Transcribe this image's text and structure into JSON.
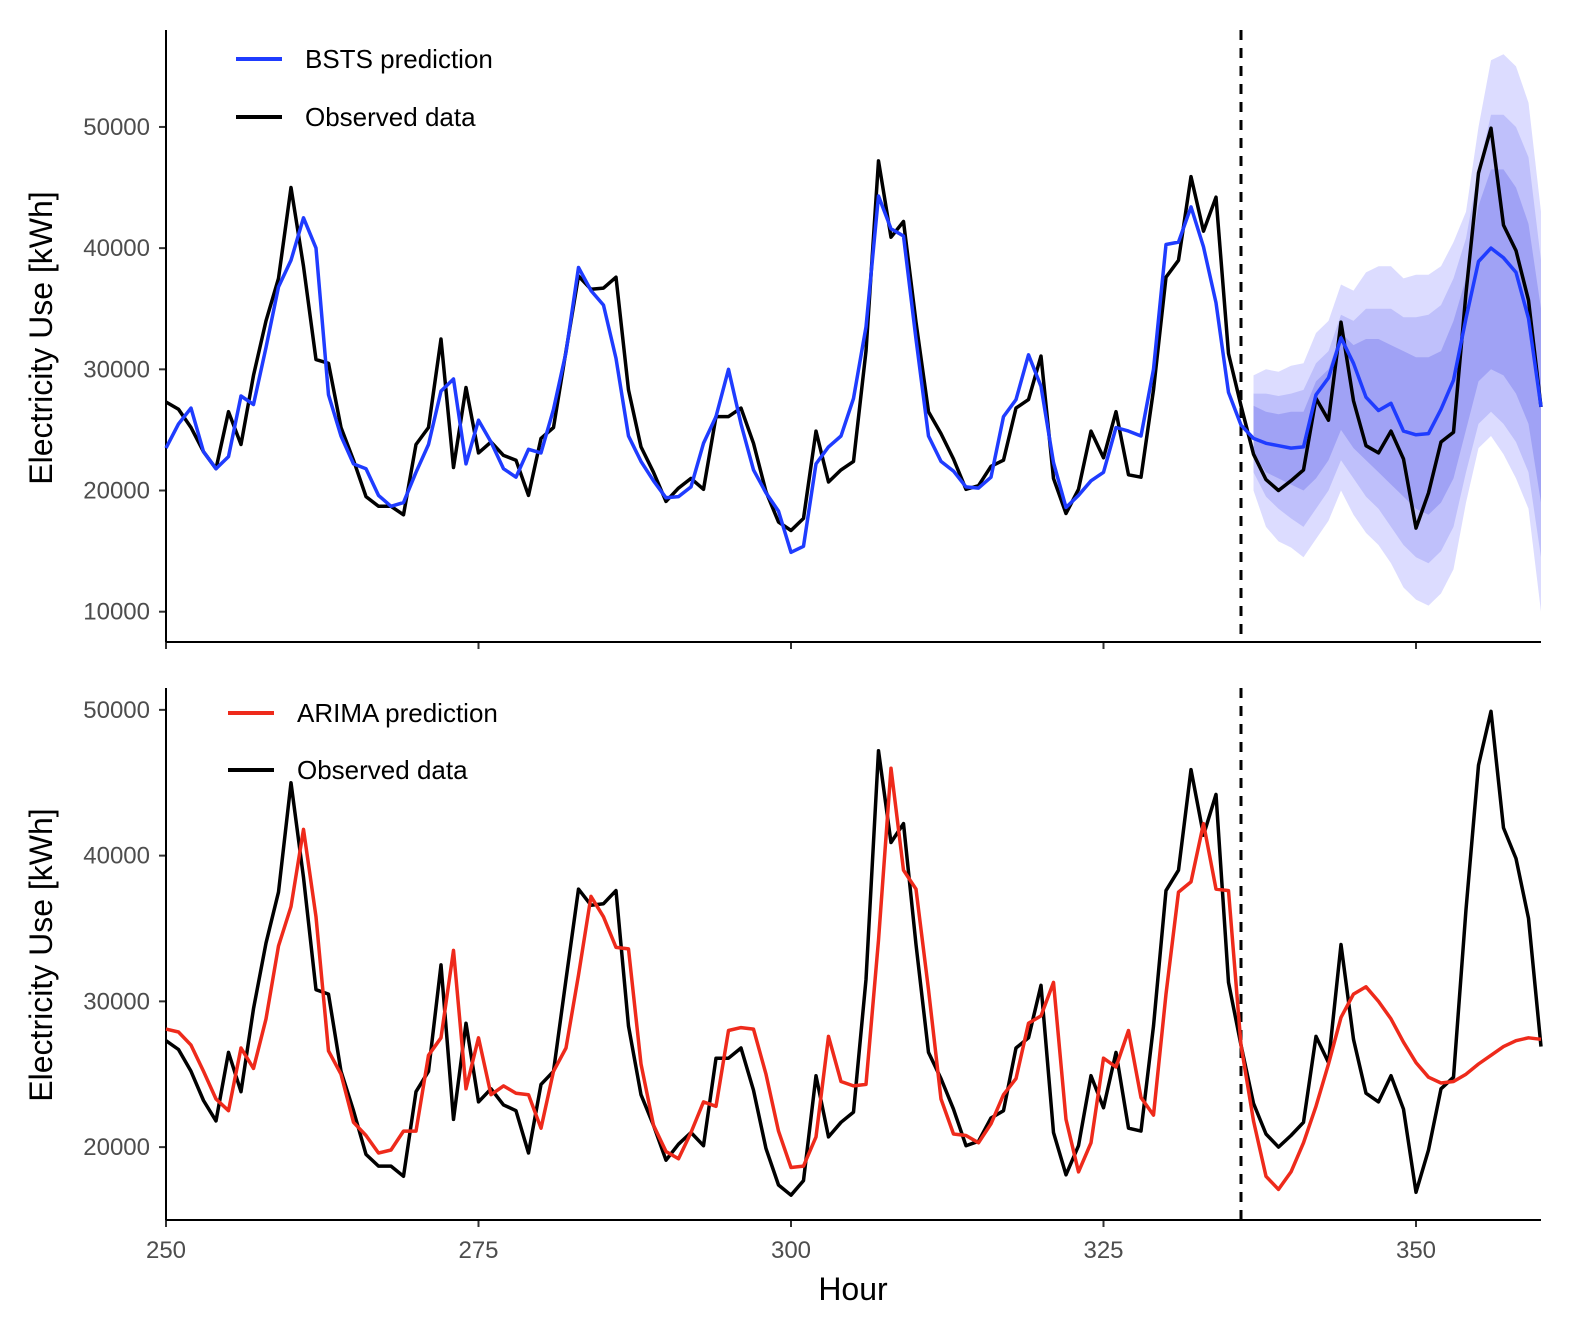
{
  "chart_data": [
    {
      "type": "line",
      "panel": "top",
      "xlabel": "",
      "ylabel": "Electricity Use [kWh]",
      "xlim": [
        250,
        360
      ],
      "ylim": [
        7500,
        58000
      ],
      "xticks": [
        250,
        275,
        300,
        325,
        350
      ],
      "yticks": [
        10000,
        20000,
        30000,
        40000,
        50000
      ],
      "ytick_labels": [
        "10000",
        "20000",
        "30000",
        "40000",
        "50000"
      ],
      "forecast_start": 336,
      "legend": [
        {
          "label": "BSTS prediction",
          "color": "#1f3cff"
        },
        {
          "label": "Observed data",
          "color": "#000000"
        }
      ],
      "observed": {
        "name": "Observed data",
        "x": [
          250,
          251,
          252,
          253,
          254,
          255,
          256,
          257,
          258,
          259,
          260,
          261,
          262,
          263,
          264,
          265,
          266,
          267,
          268,
          269,
          270,
          271,
          272,
          273,
          274,
          275,
          276,
          277,
          278,
          279,
          280,
          281,
          282,
          283,
          284,
          285,
          286,
          287,
          288,
          289,
          290,
          291,
          292,
          293,
          294,
          295,
          296,
          297,
          298,
          299,
          300,
          301,
          302,
          303,
          304,
          305,
          306,
          307,
          308,
          309,
          310,
          311,
          312,
          313,
          314,
          315,
          316,
          317,
          318,
          319,
          320,
          321,
          322,
          323,
          324,
          325,
          326,
          327,
          328,
          329,
          330,
          331,
          332,
          333,
          334,
          335,
          336,
          337,
          338,
          339,
          340,
          341,
          342,
          343,
          344,
          345,
          346,
          347,
          348,
          349,
          350,
          351,
          352,
          353,
          354,
          355,
          356,
          357,
          358,
          359,
          360
        ],
        "values": [
          27300,
          26700,
          25200,
          23200,
          21800,
          26500,
          23800,
          29500,
          34000,
          37500,
          45000,
          38500,
          30800,
          30500,
          25200,
          22500,
          19500,
          18700,
          18700,
          18000,
          23800,
          25200,
          32500,
          21900,
          28500,
          23100,
          24000,
          22900,
          22500,
          19600,
          24300,
          25200,
          31500,
          37700,
          36600,
          36700,
          37600,
          28300,
          23600,
          21500,
          19100,
          20200,
          21000,
          20100,
          26100,
          26100,
          26800,
          23900,
          19900,
          17400,
          16700,
          17700,
          24900,
          20700,
          21700,
          22400,
          31500,
          47200,
          40900,
          42200,
          33900,
          26500,
          24700,
          22600,
          20100,
          20400,
          22000,
          22500,
          26800,
          27500,
          31100,
          21000,
          18100,
          20100,
          24900,
          22700,
          26500,
          21300,
          21100,
          28300,
          37600,
          39000,
          45900,
          41400,
          44200,
          31300,
          27000,
          23000,
          20900,
          20000,
          20800,
          21700,
          27600,
          25800,
          33900,
          27400,
          23700,
          23100,
          24900,
          22600,
          16900,
          19800,
          24000,
          24800,
          36300,
          46200,
          49900,
          41900,
          39800,
          35700,
          26900
        ]
      },
      "prediction": {
        "name": "BSTS prediction",
        "x": [
          250,
          251,
          252,
          253,
          254,
          255,
          256,
          257,
          258,
          259,
          260,
          261,
          262,
          263,
          264,
          265,
          266,
          267,
          268,
          269,
          270,
          271,
          272,
          273,
          274,
          275,
          276,
          277,
          278,
          279,
          280,
          281,
          282,
          283,
          284,
          285,
          286,
          287,
          288,
          289,
          290,
          291,
          292,
          293,
          294,
          295,
          296,
          297,
          298,
          299,
          300,
          301,
          302,
          303,
          304,
          305,
          306,
          307,
          308,
          309,
          310,
          311,
          312,
          313,
          314,
          315,
          316,
          317,
          318,
          319,
          320,
          321,
          322,
          323,
          324,
          325,
          326,
          327,
          328,
          329,
          330,
          331,
          332,
          333,
          334,
          335,
          336,
          337,
          338,
          339,
          340,
          341,
          342,
          343,
          344,
          345,
          346,
          347,
          348,
          349,
          350,
          351,
          352,
          353,
          354,
          355,
          356,
          357,
          358,
          359,
          360
        ],
        "values": [
          23500,
          25500,
          26800,
          23200,
          21800,
          22800,
          27800,
          27100,
          31800,
          36800,
          39000,
          42500,
          40000,
          27900,
          24500,
          22200,
          21800,
          19600,
          18700,
          19000,
          21500,
          23800,
          28200,
          29200,
          22200,
          25800,
          24000,
          21800,
          21100,
          23400,
          23100,
          26700,
          31400,
          38400,
          36500,
          35300,
          30900,
          24500,
          22400,
          20800,
          19400,
          19500,
          20300,
          23900,
          26100,
          30000,
          25500,
          21700,
          19800,
          18300,
          14900,
          15400,
          22200,
          23600,
          24500,
          27600,
          33500,
          44300,
          41600,
          41000,
          32500,
          24500,
          22400,
          21600,
          20300,
          20200,
          21100,
          26100,
          27500,
          31200,
          28600,
          22300,
          18600,
          19600,
          20800,
          21500,
          25200,
          24900,
          24500,
          30000,
          40300,
          40500,
          43400,
          40100,
          35500,
          28100,
          25400,
          24300,
          23900,
          23700,
          23500,
          23600,
          27900,
          29300,
          32600,
          30500,
          27700,
          26600,
          27200,
          24900,
          24600,
          24700,
          26700,
          29100,
          34200,
          38900,
          40000,
          39200,
          38000,
          34200,
          26900
        ]
      },
      "intervals": {
        "x": [
          337,
          338,
          339,
          340,
          341,
          342,
          343,
          344,
          345,
          346,
          347,
          348,
          349,
          350,
          351,
          352,
          353,
          354,
          355,
          356,
          357,
          358,
          359,
          360
        ],
        "outer_lower": [
          20000,
          17000,
          15800,
          15300,
          14500,
          16000,
          17500,
          20000,
          18000,
          16500,
          15500,
          14000,
          12000,
          11000,
          10500,
          11500,
          13500,
          19000,
          23500,
          24500,
          23000,
          21000,
          18500,
          10000
        ],
        "outer_upper": [
          29500,
          30000,
          29800,
          30300,
          30500,
          33000,
          34000,
          37000,
          36500,
          38000,
          38500,
          38500,
          37500,
          37800,
          37800,
          38500,
          40500,
          43000,
          50000,
          55500,
          56000,
          55000,
          52000,
          43000
        ],
        "mid_lower": [
          21500,
          19500,
          18500,
          17700,
          17000,
          18500,
          20000,
          22500,
          21000,
          19500,
          18500,
          17000,
          15500,
          14500,
          14000,
          15000,
          17000,
          21500,
          25500,
          26500,
          25500,
          24000,
          21500,
          14500
        ],
        "mid_upper": [
          28000,
          28000,
          27800,
          28000,
          28300,
          30500,
          31500,
          34500,
          34000,
          35000,
          35000,
          35000,
          34300,
          34300,
          34500,
          35300,
          37500,
          40800,
          46500,
          51000,
          51000,
          50000,
          47500,
          39000
        ],
        "inner_lower": [
          23000,
          21500,
          21000,
          20500,
          20000,
          21000,
          22500,
          25000,
          23500,
          22500,
          21500,
          20500,
          19500,
          18500,
          18000,
          19000,
          21000,
          25000,
          29000,
          30000,
          29500,
          28000,
          25500,
          19000
        ],
        "inner_upper": [
          27000,
          26500,
          26300,
          26500,
          26500,
          29000,
          30000,
          33000,
          32000,
          32500,
          32500,
          32000,
          31500,
          31000,
          31000,
          31500,
          34000,
          37500,
          43500,
          46500,
          46500,
          45000,
          42000,
          35000
        ]
      }
    },
    {
      "type": "line",
      "panel": "bottom",
      "xlabel": "Hour",
      "ylabel": "Electricity Use [kWh]",
      "xlim": [
        250,
        360
      ],
      "ylim": [
        15000,
        51500
      ],
      "xticks": [
        250,
        275,
        300,
        325,
        350
      ],
      "xtick_labels": [
        "250",
        "275",
        "300",
        "325",
        "350"
      ],
      "yticks": [
        20000,
        30000,
        40000,
        50000
      ],
      "ytick_labels": [
        "20000",
        "30000",
        "40000",
        "50000"
      ],
      "forecast_start": 336,
      "legend": [
        {
          "label": "ARIMA prediction",
          "color": "#ee2a1b"
        },
        {
          "label": "Observed data",
          "color": "#000000"
        }
      ],
      "observed": {
        "name": "Observed data",
        "x": [
          250,
          251,
          252,
          253,
          254,
          255,
          256,
          257,
          258,
          259,
          260,
          261,
          262,
          263,
          264,
          265,
          266,
          267,
          268,
          269,
          270,
          271,
          272,
          273,
          274,
          275,
          276,
          277,
          278,
          279,
          280,
          281,
          282,
          283,
          284,
          285,
          286,
          287,
          288,
          289,
          290,
          291,
          292,
          293,
          294,
          295,
          296,
          297,
          298,
          299,
          300,
          301,
          302,
          303,
          304,
          305,
          306,
          307,
          308,
          309,
          310,
          311,
          312,
          313,
          314,
          315,
          316,
          317,
          318,
          319,
          320,
          321,
          322,
          323,
          324,
          325,
          326,
          327,
          328,
          329,
          330,
          331,
          332,
          333,
          334,
          335,
          336,
          337,
          338,
          339,
          340,
          341,
          342,
          343,
          344,
          345,
          346,
          347,
          348,
          349,
          350,
          351,
          352,
          353,
          354,
          355,
          356,
          357,
          358,
          359,
          360
        ],
        "values": [
          27300,
          26700,
          25200,
          23200,
          21800,
          26500,
          23800,
          29500,
          34000,
          37500,
          45000,
          38500,
          30800,
          30500,
          25200,
          22500,
          19500,
          18700,
          18700,
          18000,
          23800,
          25200,
          32500,
          21900,
          28500,
          23100,
          24000,
          22900,
          22500,
          19600,
          24300,
          25200,
          31500,
          37700,
          36600,
          36700,
          37600,
          28300,
          23600,
          21500,
          19100,
          20200,
          21000,
          20100,
          26100,
          26100,
          26800,
          23900,
          19900,
          17400,
          16700,
          17700,
          24900,
          20700,
          21700,
          22400,
          31500,
          47200,
          40900,
          42200,
          33900,
          26500,
          24700,
          22600,
          20100,
          20400,
          22000,
          22500,
          26800,
          27500,
          31100,
          21000,
          18100,
          20100,
          24900,
          22700,
          26500,
          21300,
          21100,
          28300,
          37600,
          39000,
          45900,
          41400,
          44200,
          31300,
          27000,
          23000,
          20900,
          20000,
          20800,
          21700,
          27600,
          25800,
          33900,
          27400,
          23700,
          23100,
          24900,
          22600,
          16900,
          19800,
          24000,
          24800,
          36300,
          46200,
          49900,
          41900,
          39800,
          35700,
          26900
        ]
      },
      "prediction": {
        "name": "ARIMA prediction",
        "x": [
          250,
          251,
          252,
          253,
          254,
          255,
          256,
          257,
          258,
          259,
          260,
          261,
          262,
          263,
          264,
          265,
          266,
          267,
          268,
          269,
          270,
          271,
          272,
          273,
          274,
          275,
          276,
          277,
          278,
          279,
          280,
          281,
          282,
          283,
          284,
          285,
          286,
          287,
          288,
          289,
          290,
          291,
          292,
          293,
          294,
          295,
          296,
          297,
          298,
          299,
          300,
          301,
          302,
          303,
          304,
          305,
          306,
          307,
          308,
          309,
          310,
          311,
          312,
          313,
          314,
          315,
          316,
          317,
          318,
          319,
          320,
          321,
          322,
          323,
          324,
          325,
          326,
          327,
          328,
          329,
          330,
          331,
          332,
          333,
          334,
          335,
          336,
          337,
          338,
          339,
          340,
          341,
          342,
          343,
          344,
          345,
          346,
          347,
          348,
          349,
          350,
          351,
          352,
          353,
          354,
          355,
          356,
          357,
          358,
          359,
          360
        ],
        "values": [
          28100,
          27900,
          27000,
          25200,
          23300,
          22500,
          26800,
          25400,
          28800,
          33800,
          36500,
          41800,
          35800,
          26600,
          25000,
          21700,
          20800,
          19600,
          19800,
          21100,
          21100,
          26300,
          27500,
          33500,
          24000,
          27500,
          23600,
          24200,
          23700,
          23600,
          21300,
          25200,
          26800,
          31800,
          37200,
          35800,
          33700,
          33600,
          25700,
          21500,
          19700,
          19200,
          21000,
          23100,
          22800,
          28000,
          28200,
          28100,
          25000,
          21100,
          18600,
          18700,
          20700,
          27600,
          24500,
          24200,
          24300,
          34200,
          46000,
          39000,
          37700,
          30800,
          23300,
          20900,
          20800,
          20300,
          21600,
          23600,
          24700,
          28500,
          29000,
          31300,
          21900,
          18300,
          20300,
          26100,
          25500,
          28000,
          23400,
          22200,
          30500,
          37500,
          38200,
          42200,
          37700,
          37600,
          27000,
          21800,
          18000,
          17100,
          18300,
          20300,
          22800,
          25700,
          28900,
          30500,
          31000,
          30000,
          28800,
          27200,
          25800,
          24800,
          24400,
          24500,
          25000,
          25700,
          26300,
          26900,
          27300,
          27500,
          27400
        ]
      }
    }
  ]
}
